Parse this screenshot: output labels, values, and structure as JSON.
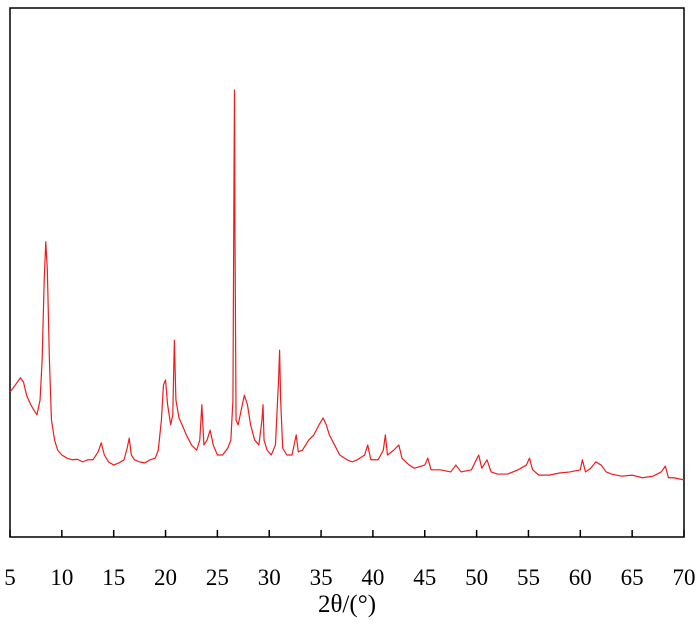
{
  "chart_data": {
    "type": "line",
    "xlabel": "2θ/(°)",
    "xlim": [
      5,
      70
    ],
    "xticks": [
      5,
      10,
      15,
      20,
      25,
      30,
      35,
      40,
      45,
      50,
      55,
      60,
      65,
      70
    ],
    "ylim": [
      0,
      100
    ],
    "x": [
      5,
      5.5,
      6,
      6.3,
      6.6,
      7,
      7.3,
      7.6,
      7.9,
      8.1,
      8.3,
      8.45,
      8.6,
      8.8,
      9,
      9.3,
      9.6,
      10,
      10.5,
      11,
      11.5,
      12,
      12.5,
      13,
      13.5,
      13.8,
      14.1,
      14.5,
      15,
      15.5,
      16,
      16.3,
      16.5,
      16.7,
      17,
      17.5,
      18,
      18.5,
      19,
      19.3,
      19.6,
      19.8,
      20,
      20.2,
      20.5,
      20.7,
      20.85,
      21,
      21.3,
      21.6,
      22,
      22.5,
      23,
      23.3,
      23.5,
      23.7,
      24,
      24.3,
      24.6,
      25,
      25.5,
      26,
      26.3,
      26.5,
      26.6,
      26.65,
      26.7,
      26.8,
      27,
      27.3,
      27.6,
      27.9,
      28.2,
      28.6,
      29,
      29.3,
      29.4,
      29.5,
      29.8,
      30.2,
      30.6,
      30.9,
      31,
      31.1,
      31.3,
      31.7,
      32.2,
      32.6,
      32.8,
      33.2,
      33.8,
      34.3,
      34.8,
      35.2,
      35.5,
      35.8,
      36.3,
      36.8,
      37.5,
      38,
      38.5,
      39.2,
      39.5,
      39.8,
      40.5,
      41,
      41.2,
      41.4,
      42,
      42.5,
      42.8,
      43.5,
      44,
      45,
      45.3,
      45.6,
      46.5,
      47.5,
      48,
      48.5,
      49.5,
      50.2,
      50.5,
      51,
      51.4,
      52,
      53,
      54,
      54.8,
      55.1,
      55.4,
      56,
      57,
      58,
      59,
      60,
      60.2,
      60.5,
      61,
      61.5,
      62,
      62.5,
      63,
      64,
      65,
      66,
      67,
      67.8,
      68.2,
      68.5,
      69,
      70
    ],
    "series": [
      {
        "color": "#ee1c1c",
        "values": [
          27.4,
          28.7,
          30.1,
          29.3,
          26.8,
          25.0,
          24.0,
          23.1,
          25.9,
          33.5,
          48.6,
          55.8,
          50.5,
          33.5,
          22.1,
          18.3,
          16.4,
          15.5,
          14.9,
          14.6,
          14.7,
          14.2,
          14.6,
          14.6,
          16.1,
          17.8,
          15.5,
          14.2,
          13.6,
          14.0,
          14.6,
          16.8,
          18.7,
          15.5,
          14.6,
          14.2,
          14.0,
          14.6,
          14.9,
          16.4,
          22.1,
          28.7,
          29.7,
          25.0,
          21.2,
          23.1,
          37.2,
          25.9,
          22.5,
          21.2,
          19.3,
          17.4,
          16.4,
          18.3,
          25.0,
          17.4,
          18.3,
          20.2,
          17.4,
          15.5,
          15.5,
          16.8,
          18.3,
          25.9,
          67.5,
          84.5,
          56.1,
          22.1,
          21.2,
          24.0,
          26.8,
          25.0,
          21.2,
          18.3,
          17.4,
          22.1,
          25.0,
          18.3,
          16.4,
          15.5,
          17.4,
          29.7,
          35.3,
          25.9,
          16.8,
          15.5,
          15.5,
          19.3,
          16.1,
          16.4,
          18.3,
          19.3,
          21.2,
          22.5,
          21.2,
          19.3,
          17.4,
          15.5,
          14.6,
          14.2,
          14.6,
          15.5,
          17.4,
          14.6,
          14.6,
          16.4,
          19.3,
          15.5,
          16.4,
          17.4,
          14.9,
          13.6,
          13.0,
          13.6,
          14.9,
          12.7,
          12.7,
          12.3,
          13.6,
          12.3,
          12.7,
          15.5,
          13.0,
          14.6,
          12.3,
          11.9,
          11.9,
          12.7,
          13.6,
          14.9,
          12.7,
          11.7,
          11.7,
          12.1,
          12.3,
          12.7,
          14.6,
          12.3,
          13.0,
          14.2,
          13.6,
          12.3,
          11.9,
          11.5,
          11.7,
          11.2,
          11.5,
          12.3,
          13.4,
          11.2,
          11.2,
          10.8
        ]
      }
    ]
  }
}
